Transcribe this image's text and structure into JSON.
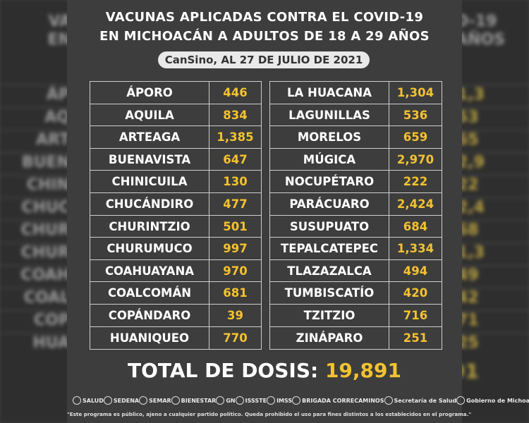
{
  "title": {
    "line1_a": "VACUNAS APLICADAS ",
    "line1_b": "CONTRA EL COVID-19",
    "line2": "EN MICHOACÁN A ADULTOS DE 18 A 29 AÑOS",
    "subtitle": "CanSino, AL 27 DE JULIO DE 2021"
  },
  "table_left": [
    {
      "municipio": "ÁPORO",
      "dosis": "446"
    },
    {
      "municipio": "AQUILA",
      "dosis": "834"
    },
    {
      "municipio": "ARTEAGA",
      "dosis": "1,385"
    },
    {
      "municipio": "BUENAVISTA",
      "dosis": "647"
    },
    {
      "municipio": "CHINICUILA",
      "dosis": "130"
    },
    {
      "municipio": "CHUCÁNDIRO",
      "dosis": "477"
    },
    {
      "municipio": "CHURINTZIO",
      "dosis": "501"
    },
    {
      "municipio": "CHURUMUCO",
      "dosis": "997"
    },
    {
      "municipio": "COAHUAYANA",
      "dosis": "970"
    },
    {
      "municipio": "COALCOMÁN",
      "dosis": "681"
    },
    {
      "municipio": "COPÁNDARO",
      "dosis": "39"
    },
    {
      "municipio": "HUANIQUEO",
      "dosis": "770"
    }
  ],
  "table_right": [
    {
      "municipio": "LA HUACANA",
      "dosis": "1,304"
    },
    {
      "municipio": "LAGUNILLAS",
      "dosis": "536"
    },
    {
      "municipio": "MORELOS",
      "dosis": "659"
    },
    {
      "municipio": "MÚGICA",
      "dosis": "2,970"
    },
    {
      "municipio": "NOCUPÉTARO",
      "dosis": "222"
    },
    {
      "municipio": "PARÁCUARO",
      "dosis": "2,424"
    },
    {
      "municipio": "SUSUPUATO",
      "dosis": "684"
    },
    {
      "municipio": "TEPALCATEPEC",
      "dosis": "1,334"
    },
    {
      "municipio": "TLAZAZALCA",
      "dosis": "494"
    },
    {
      "municipio": "TUMBISCATÍO",
      "dosis": "420"
    },
    {
      "municipio": "TZITZIO",
      "dosis": "716"
    },
    {
      "municipio": "ZINÁPARO",
      "dosis": "251"
    }
  ],
  "total": {
    "label": "TOTAL DE DOSIS:",
    "value": "19,891"
  },
  "logos": [
    "SALUD",
    "SEDENA",
    "SEMAR",
    "BIENESTAR",
    "GN",
    "ISSSTE",
    "IMSS",
    "BRIGADA CORRECAMINOS",
    "Secretaría de Salud",
    "Gobierno de Michoacán"
  ],
  "disclaimer": "\"Este programa es público, ajeno a cualquier partido político. Queda prohibido el uso para fines distintos a los establecidos en el programa.\"",
  "colors": {
    "background": "#3d3d3d",
    "accent": "#f2c230",
    "text": "#ffffff",
    "border": "#cfcfcf"
  }
}
